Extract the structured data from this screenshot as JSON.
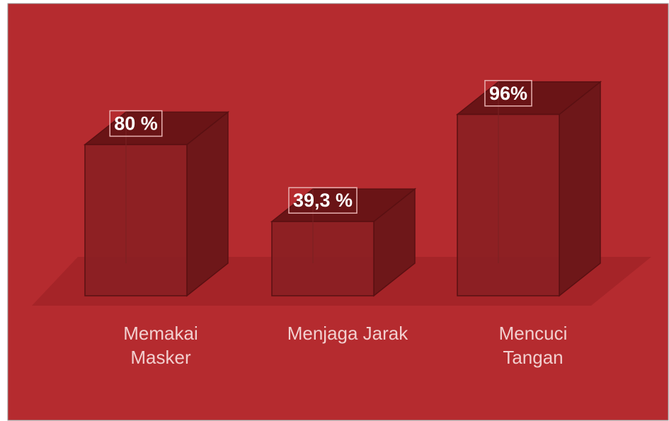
{
  "chart_data": {
    "type": "bar3d",
    "categories": [
      "Memakai\nMasker",
      "Menjaga Jarak",
      "Mencuci\nTangan"
    ],
    "values": [
      80,
      39.3,
      96
    ],
    "value_labels": [
      "80 %",
      "39,3 %",
      "96%"
    ],
    "color": "#8a1f22"
  }
}
